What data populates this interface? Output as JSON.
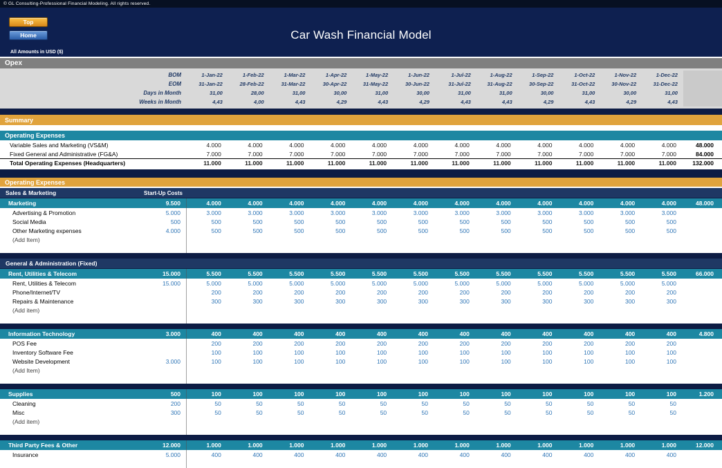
{
  "header": {
    "copyright": "© GL Consulting-Professional Financial Modeling. All rights reserved.",
    "top_button": "Top",
    "home_button": "Home",
    "title": "Car Wash Financial Model",
    "units_note": "All Amounts in  USD ($)"
  },
  "colors": {
    "page_background": "#0d1c44",
    "gold_bar": "#e0a33c",
    "teal_bar": "#1d87a2",
    "navy_section_bar": "#1f3864",
    "gray_bar": "#7f7f7f",
    "detail_number_blue": "#2e75b6",
    "date_text_navy": "#1f3864"
  },
  "opex_header": {
    "title": "Opex",
    "date_rows": [
      {
        "label": "BOM",
        "values": [
          "1-Jan-22",
          "1-Feb-22",
          "1-Mar-22",
          "1-Apr-22",
          "1-May-22",
          "1-Jun-22",
          "1-Jul-22",
          "1-Aug-22",
          "1-Sep-22",
          "1-Oct-22",
          "1-Nov-22",
          "1-Dec-22"
        ]
      },
      {
        "label": "EOM",
        "values": [
          "31-Jan-22",
          "28-Feb-22",
          "31-Mar-22",
          "30-Apr-22",
          "31-May-22",
          "30-Jun-22",
          "31-Jul-22",
          "31-Aug-22",
          "30-Sep-22",
          "31-Oct-22",
          "30-Nov-22",
          "31-Dec-22"
        ]
      },
      {
        "label": "Days in Month",
        "values": [
          "31,00",
          "28,00",
          "31,00",
          "30,00",
          "31,00",
          "30,00",
          "31,00",
          "31,00",
          "30,00",
          "31,00",
          "30,00",
          "31,00"
        ]
      },
      {
        "label": "Weeks in Month",
        "values": [
          "4,43",
          "4,00",
          "4,43",
          "4,29",
          "4,43",
          "4,29",
          "4,43",
          "4,43",
          "4,29",
          "4,43",
          "4,29",
          "4,43"
        ]
      }
    ]
  },
  "summary": {
    "title": "Summary",
    "subtitle": "Operating Expenses",
    "rows": [
      {
        "label": "Variable Sales and Marketing (VS&M)",
        "startup": "",
        "months": [
          "4.000",
          "4.000",
          "4.000",
          "4.000",
          "4.000",
          "4.000",
          "4.000",
          "4.000",
          "4.000",
          "4.000",
          "4.000",
          "4.000"
        ],
        "total": "48.000",
        "style": "plain"
      },
      {
        "label": "Fixed General and Administrative (FG&A)",
        "startup": "",
        "months": [
          "7.000",
          "7.000",
          "7.000",
          "7.000",
          "7.000",
          "7.000",
          "7.000",
          "7.000",
          "7.000",
          "7.000",
          "7.000",
          "7.000"
        ],
        "total": "84.000",
        "style": "plain"
      },
      {
        "label": "Total Operating Expenses (Headquarters)",
        "startup": "",
        "months": [
          "11.000",
          "11.000",
          "11.000",
          "11.000",
          "11.000",
          "11.000",
          "11.000",
          "11.000",
          "11.000",
          "11.000",
          "11.000",
          "11.000"
        ],
        "total": "132.000",
        "style": "total"
      }
    ]
  },
  "opex_detail": {
    "title": "Operating Expenses",
    "startup_column_header": "Start-Up Costs",
    "groups": [
      {
        "section_header": "Sales & Marketing",
        "show_startup_header": true,
        "subgroups": [
          {
            "header": {
              "label": "Marketing",
              "startup": "9.500",
              "months": [
                "4.000",
                "4.000",
                "4.000",
                "4.000",
                "4.000",
                "4.000",
                "4.000",
                "4.000",
                "4.000",
                "4.000",
                "4.000",
                "4.000"
              ],
              "total": "48.000"
            },
            "rows": [
              {
                "label": "Advertising & Promotion",
                "startup": "5.000",
                "months": [
                  "3.000",
                  "3.000",
                  "3.000",
                  "3.000",
                  "3.000",
                  "3.000",
                  "3.000",
                  "3.000",
                  "3.000",
                  "3.000",
                  "3.000",
                  "3.000"
                ]
              },
              {
                "label": "Social Media",
                "startup": "500",
                "months": [
                  "500",
                  "500",
                  "500",
                  "500",
                  "500",
                  "500",
                  "500",
                  "500",
                  "500",
                  "500",
                  "500",
                  "500"
                ]
              },
              {
                "label": "Other Marketing expenses",
                "startup": "4.000",
                "months": [
                  "500",
                  "500",
                  "500",
                  "500",
                  "500",
                  "500",
                  "500",
                  "500",
                  "500",
                  "500",
                  "500",
                  "500"
                ]
              },
              {
                "label": "(Add Item)",
                "add_item": true
              }
            ]
          }
        ]
      },
      {
        "section_header": "General & Administration (Fixed)",
        "show_startup_header": false,
        "subgroups": [
          {
            "header": {
              "label": "Rent, Utilities & Telecom",
              "startup": "15.000",
              "months": [
                "5.500",
                "5.500",
                "5.500",
                "5.500",
                "5.500",
                "5.500",
                "5.500",
                "5.500",
                "5.500",
                "5.500",
                "5.500",
                "5.500"
              ],
              "total": "66.000"
            },
            "rows": [
              {
                "label": "Rent, Utilities & Telecom",
                "startup": "15.000",
                "months": [
                  "5.000",
                  "5.000",
                  "5.000",
                  "5.000",
                  "5.000",
                  "5.000",
                  "5.000",
                  "5.000",
                  "5.000",
                  "5.000",
                  "5.000",
                  "5.000"
                ]
              },
              {
                "label": "Phone/Internet/TV",
                "startup": "",
                "months": [
                  "200",
                  "200",
                  "200",
                  "200",
                  "200",
                  "200",
                  "200",
                  "200",
                  "200",
                  "200",
                  "200",
                  "200"
                ]
              },
              {
                "label": "Repairs & Maintenance",
                "startup": "",
                "months": [
                  "300",
                  "300",
                  "300",
                  "300",
                  "300",
                  "300",
                  "300",
                  "300",
                  "300",
                  "300",
                  "300",
                  "300"
                ]
              },
              {
                "label": "(Add item)",
                "add_item": true
              }
            ]
          },
          {
            "header": {
              "label": "Information Technology",
              "startup": "3.000",
              "months": [
                "400",
                "400",
                "400",
                "400",
                "400",
                "400",
                "400",
                "400",
                "400",
                "400",
                "400",
                "400"
              ],
              "total": "4.800"
            },
            "rows": [
              {
                "label": "POS Fee",
                "startup": "",
                "months": [
                  "200",
                  "200",
                  "200",
                  "200",
                  "200",
                  "200",
                  "200",
                  "200",
                  "200",
                  "200",
                  "200",
                  "200"
                ]
              },
              {
                "label": "Inventory Software Fee",
                "startup": "",
                "months": [
                  "100",
                  "100",
                  "100",
                  "100",
                  "100",
                  "100",
                  "100",
                  "100",
                  "100",
                  "100",
                  "100",
                  "100"
                ]
              },
              {
                "label": "Website Development",
                "startup": "3.000",
                "months": [
                  "100",
                  "100",
                  "100",
                  "100",
                  "100",
                  "100",
                  "100",
                  "100",
                  "100",
                  "100",
                  "100",
                  "100"
                ]
              },
              {
                "label": "(Add Item)",
                "add_item": true
              }
            ]
          },
          {
            "header": {
              "label": "Supplies",
              "startup": "500",
              "months": [
                "100",
                "100",
                "100",
                "100",
                "100",
                "100",
                "100",
                "100",
                "100",
                "100",
                "100",
                "100"
              ],
              "total": "1.200"
            },
            "rows": [
              {
                "label": "Cleaning",
                "startup": "200",
                "months": [
                  "50",
                  "50",
                  "50",
                  "50",
                  "50",
                  "50",
                  "50",
                  "50",
                  "50",
                  "50",
                  "50",
                  "50"
                ]
              },
              {
                "label": "Misc",
                "startup": "300",
                "months": [
                  "50",
                  "50",
                  "50",
                  "50",
                  "50",
                  "50",
                  "50",
                  "50",
                  "50",
                  "50",
                  "50",
                  "50"
                ]
              },
              {
                "label": "(Add item)",
                "add_item": true
              }
            ]
          },
          {
            "header": {
              "label": "Third Party Fees & Other",
              "startup": "12.000",
              "months": [
                "1.000",
                "1.000",
                "1.000",
                "1.000",
                "1.000",
                "1.000",
                "1.000",
                "1.000",
                "1.000",
                "1.000",
                "1.000",
                "1.000"
              ],
              "total": "12.000"
            },
            "rows": [
              {
                "label": "Insurance",
                "startup": "5.000",
                "months": [
                  "400",
                  "400",
                  "400",
                  "400",
                  "400",
                  "400",
                  "400",
                  "400",
                  "400",
                  "400",
                  "400",
                  "400"
                ]
              }
            ]
          }
        ]
      }
    ]
  }
}
